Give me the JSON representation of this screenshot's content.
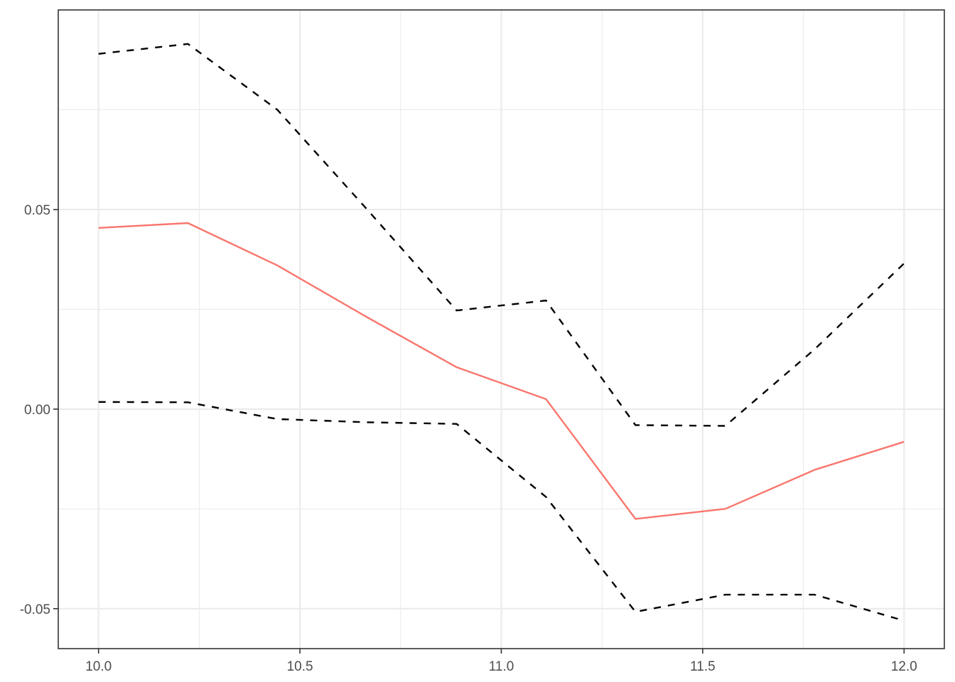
{
  "chart_data": {
    "type": "line",
    "title": "",
    "xlabel": "",
    "ylabel": "",
    "xlim": [
      9.9,
      12.1
    ],
    "ylim": [
      -0.06,
      0.1
    ],
    "grid": true,
    "x_ticks": [
      10.0,
      10.5,
      11.0,
      11.5,
      12.0
    ],
    "x_tick_labels": [
      "10.0",
      "10.5",
      "11.0",
      "11.5",
      "12.0"
    ],
    "y_ticks": [
      -0.05,
      0.0,
      0.05
    ],
    "y_tick_labels": [
      "-0.05",
      "0.00",
      "0.05"
    ],
    "x": [
      10.0,
      10.222,
      10.444,
      10.667,
      10.889,
      11.111,
      11.333,
      11.556,
      11.778,
      12.0
    ],
    "series": [
      {
        "style": "solid",
        "color": "#F8766D",
        "values": [
          0.0454,
          0.0466,
          0.036,
          0.023,
          0.0105,
          0.0025,
          -0.0275,
          -0.025,
          -0.0152,
          -0.0082
        ]
      },
      {
        "style": "dashed",
        "color": "#000000",
        "values": [
          0.089,
          0.0915,
          0.075,
          0.05,
          0.0247,
          0.0272,
          -0.004,
          -0.0042,
          0.015,
          0.0365
        ]
      },
      {
        "style": "dashed",
        "color": "#000000",
        "values": [
          0.0018,
          0.0017,
          -0.0025,
          -0.0033,
          -0.0037,
          -0.022,
          -0.0508,
          -0.0465,
          -0.0465,
          -0.053
        ]
      }
    ]
  }
}
